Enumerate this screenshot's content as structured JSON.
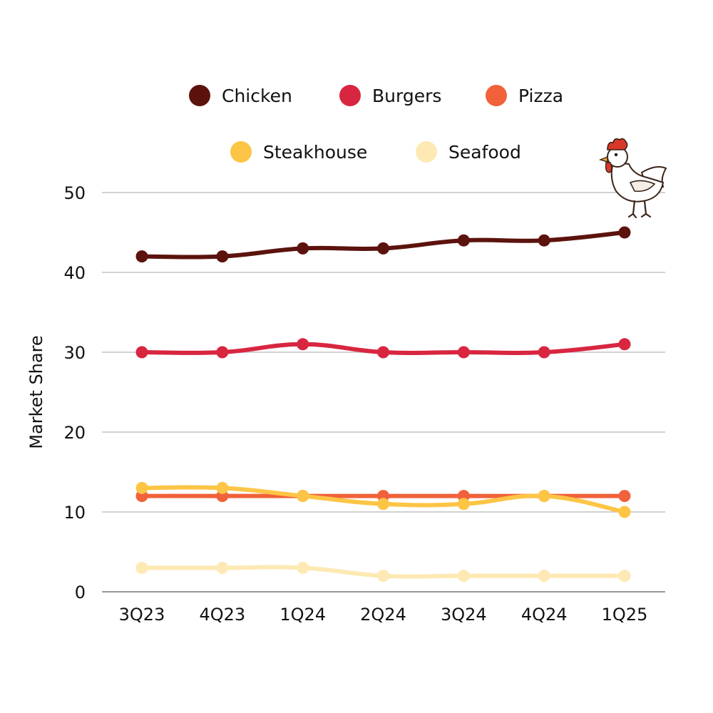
{
  "chart_data": {
    "type": "line",
    "title": "",
    "xlabel": "",
    "ylabel": "Market Share",
    "categories": [
      "3Q23",
      "4Q23",
      "1Q24",
      "2Q24",
      "3Q24",
      "4Q24",
      "1Q25"
    ],
    "ylim": [
      0,
      50
    ],
    "yticks": [
      0,
      10,
      20,
      30,
      40,
      50
    ],
    "grid": true,
    "legend_placement": "top-center",
    "series": [
      {
        "name": "Chicken",
        "color": "#5c130d",
        "values": [
          42,
          42,
          43,
          43,
          44,
          44,
          45
        ]
      },
      {
        "name": "Burgers",
        "color": "#d82640",
        "values": [
          30,
          30,
          31,
          30,
          30,
          30,
          31
        ]
      },
      {
        "name": "Pizza",
        "color": "#f1613a",
        "values": [
          12,
          12,
          12,
          12,
          12,
          12,
          12
        ]
      },
      {
        "name": "Steakhouse",
        "color": "#fcc545",
        "values": [
          13,
          13,
          12,
          11,
          11,
          12,
          10
        ]
      },
      {
        "name": "Seafood",
        "color": "#fde9b3",
        "values": [
          3,
          3,
          3,
          2,
          2,
          2,
          2
        ]
      }
    ],
    "decoration_icon": "chicken-icon"
  }
}
